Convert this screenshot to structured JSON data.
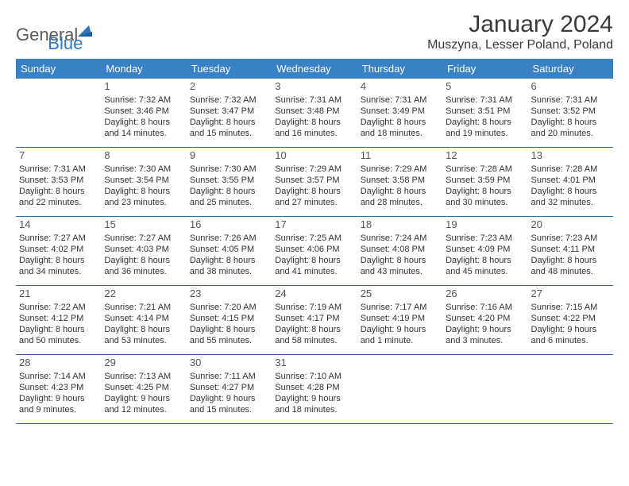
{
  "logo": {
    "general": "General",
    "blue": "Blue"
  },
  "header": {
    "title": "January 2024",
    "location": "Muszyna, Lesser Poland, Poland"
  },
  "colors": {
    "header_bg": "#3981c5",
    "header_text": "#ffffff",
    "row_border": "#2f6aa8",
    "body_text": "#333333",
    "page_bg": "#ffffff",
    "logo_gray": "#5a5a5a",
    "logo_blue": "#2f77bb"
  },
  "weekdays": [
    "Sunday",
    "Monday",
    "Tuesday",
    "Wednesday",
    "Thursday",
    "Friday",
    "Saturday"
  ],
  "weeks": [
    [
      null,
      {
        "n": "1",
        "sr": "Sunrise: 7:32 AM",
        "ss": "Sunset: 3:46 PM",
        "d1": "Daylight: 8 hours",
        "d2": "and 14 minutes."
      },
      {
        "n": "2",
        "sr": "Sunrise: 7:32 AM",
        "ss": "Sunset: 3:47 PM",
        "d1": "Daylight: 8 hours",
        "d2": "and 15 minutes."
      },
      {
        "n": "3",
        "sr": "Sunrise: 7:31 AM",
        "ss": "Sunset: 3:48 PM",
        "d1": "Daylight: 8 hours",
        "d2": "and 16 minutes."
      },
      {
        "n": "4",
        "sr": "Sunrise: 7:31 AM",
        "ss": "Sunset: 3:49 PM",
        "d1": "Daylight: 8 hours",
        "d2": "and 18 minutes."
      },
      {
        "n": "5",
        "sr": "Sunrise: 7:31 AM",
        "ss": "Sunset: 3:51 PM",
        "d1": "Daylight: 8 hours",
        "d2": "and 19 minutes."
      },
      {
        "n": "6",
        "sr": "Sunrise: 7:31 AM",
        "ss": "Sunset: 3:52 PM",
        "d1": "Daylight: 8 hours",
        "d2": "and 20 minutes."
      }
    ],
    [
      {
        "n": "7",
        "sr": "Sunrise: 7:31 AM",
        "ss": "Sunset: 3:53 PM",
        "d1": "Daylight: 8 hours",
        "d2": "and 22 minutes."
      },
      {
        "n": "8",
        "sr": "Sunrise: 7:30 AM",
        "ss": "Sunset: 3:54 PM",
        "d1": "Daylight: 8 hours",
        "d2": "and 23 minutes."
      },
      {
        "n": "9",
        "sr": "Sunrise: 7:30 AM",
        "ss": "Sunset: 3:55 PM",
        "d1": "Daylight: 8 hours",
        "d2": "and 25 minutes."
      },
      {
        "n": "10",
        "sr": "Sunrise: 7:29 AM",
        "ss": "Sunset: 3:57 PM",
        "d1": "Daylight: 8 hours",
        "d2": "and 27 minutes."
      },
      {
        "n": "11",
        "sr": "Sunrise: 7:29 AM",
        "ss": "Sunset: 3:58 PM",
        "d1": "Daylight: 8 hours",
        "d2": "and 28 minutes."
      },
      {
        "n": "12",
        "sr": "Sunrise: 7:28 AM",
        "ss": "Sunset: 3:59 PM",
        "d1": "Daylight: 8 hours",
        "d2": "and 30 minutes."
      },
      {
        "n": "13",
        "sr": "Sunrise: 7:28 AM",
        "ss": "Sunset: 4:01 PM",
        "d1": "Daylight: 8 hours",
        "d2": "and 32 minutes."
      }
    ],
    [
      {
        "n": "14",
        "sr": "Sunrise: 7:27 AM",
        "ss": "Sunset: 4:02 PM",
        "d1": "Daylight: 8 hours",
        "d2": "and 34 minutes."
      },
      {
        "n": "15",
        "sr": "Sunrise: 7:27 AM",
        "ss": "Sunset: 4:03 PM",
        "d1": "Daylight: 8 hours",
        "d2": "and 36 minutes."
      },
      {
        "n": "16",
        "sr": "Sunrise: 7:26 AM",
        "ss": "Sunset: 4:05 PM",
        "d1": "Daylight: 8 hours",
        "d2": "and 38 minutes."
      },
      {
        "n": "17",
        "sr": "Sunrise: 7:25 AM",
        "ss": "Sunset: 4:06 PM",
        "d1": "Daylight: 8 hours",
        "d2": "and 41 minutes."
      },
      {
        "n": "18",
        "sr": "Sunrise: 7:24 AM",
        "ss": "Sunset: 4:08 PM",
        "d1": "Daylight: 8 hours",
        "d2": "and 43 minutes."
      },
      {
        "n": "19",
        "sr": "Sunrise: 7:23 AM",
        "ss": "Sunset: 4:09 PM",
        "d1": "Daylight: 8 hours",
        "d2": "and 45 minutes."
      },
      {
        "n": "20",
        "sr": "Sunrise: 7:23 AM",
        "ss": "Sunset: 4:11 PM",
        "d1": "Daylight: 8 hours",
        "d2": "and 48 minutes."
      }
    ],
    [
      {
        "n": "21",
        "sr": "Sunrise: 7:22 AM",
        "ss": "Sunset: 4:12 PM",
        "d1": "Daylight: 8 hours",
        "d2": "and 50 minutes."
      },
      {
        "n": "22",
        "sr": "Sunrise: 7:21 AM",
        "ss": "Sunset: 4:14 PM",
        "d1": "Daylight: 8 hours",
        "d2": "and 53 minutes."
      },
      {
        "n": "23",
        "sr": "Sunrise: 7:20 AM",
        "ss": "Sunset: 4:15 PM",
        "d1": "Daylight: 8 hours",
        "d2": "and 55 minutes."
      },
      {
        "n": "24",
        "sr": "Sunrise: 7:19 AM",
        "ss": "Sunset: 4:17 PM",
        "d1": "Daylight: 8 hours",
        "d2": "and 58 minutes."
      },
      {
        "n": "25",
        "sr": "Sunrise: 7:17 AM",
        "ss": "Sunset: 4:19 PM",
        "d1": "Daylight: 9 hours",
        "d2": "and 1 minute."
      },
      {
        "n": "26",
        "sr": "Sunrise: 7:16 AM",
        "ss": "Sunset: 4:20 PM",
        "d1": "Daylight: 9 hours",
        "d2": "and 3 minutes."
      },
      {
        "n": "27",
        "sr": "Sunrise: 7:15 AM",
        "ss": "Sunset: 4:22 PM",
        "d1": "Daylight: 9 hours",
        "d2": "and 6 minutes."
      }
    ],
    [
      {
        "n": "28",
        "sr": "Sunrise: 7:14 AM",
        "ss": "Sunset: 4:23 PM",
        "d1": "Daylight: 9 hours",
        "d2": "and 9 minutes."
      },
      {
        "n": "29",
        "sr": "Sunrise: 7:13 AM",
        "ss": "Sunset: 4:25 PM",
        "d1": "Daylight: 9 hours",
        "d2": "and 12 minutes."
      },
      {
        "n": "30",
        "sr": "Sunrise: 7:11 AM",
        "ss": "Sunset: 4:27 PM",
        "d1": "Daylight: 9 hours",
        "d2": "and 15 minutes."
      },
      {
        "n": "31",
        "sr": "Sunrise: 7:10 AM",
        "ss": "Sunset: 4:28 PM",
        "d1": "Daylight: 9 hours",
        "d2": "and 18 minutes."
      },
      null,
      null,
      null
    ]
  ]
}
